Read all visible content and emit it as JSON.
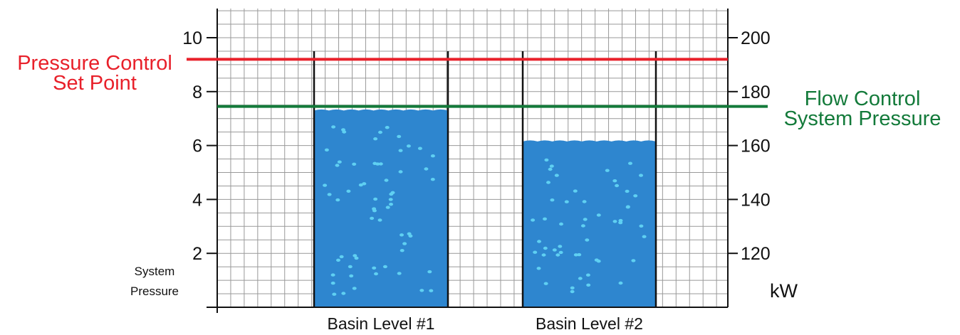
{
  "chart_data": {
    "type": "bar",
    "categories": [
      "Basin Level #1",
      "Basin Level #2"
    ],
    "values": [
      7.3,
      6.15
    ],
    "y_left": {
      "ticks": [
        2,
        4,
        6,
        8,
        10
      ],
      "range": [
        0,
        11
      ],
      "label": "System\nPressure"
    },
    "y_right": {
      "ticks": [
        120,
        140,
        160,
        180,
        200
      ],
      "range": [
        100,
        210
      ],
      "label": "kW"
    },
    "grid": true,
    "reference_lines": [
      {
        "label": "Pressure Control\nSet Point",
        "y": 9.2,
        "color": "#e8202a",
        "side": "left"
      },
      {
        "label": "Flow Control\nSystem Pressure",
        "y": 7.45,
        "color": "#137a3a",
        "side": "right"
      }
    ]
  },
  "colors": {
    "water": "#2e86cf",
    "bubble": "#5fd0f2",
    "grid": "#999999",
    "axis": "#111111"
  }
}
